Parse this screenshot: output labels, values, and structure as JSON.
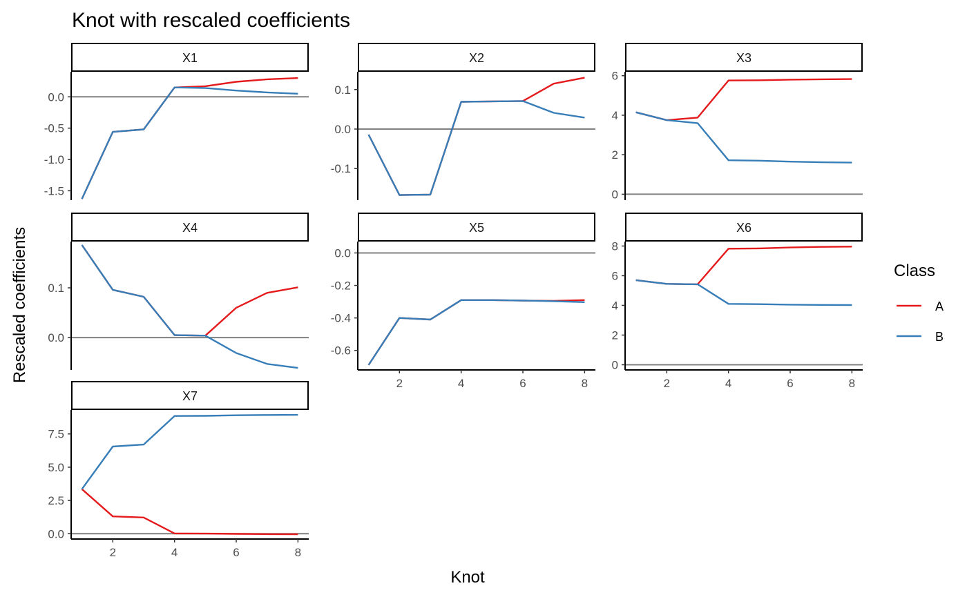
{
  "chart_data": {
    "type": "line",
    "title": "Knot with rescaled coefficients",
    "xlabel": "Knot",
    "ylabel": "Rescaled coefficients",
    "legend": {
      "title": "Class",
      "position": "right",
      "entries": [
        {
          "name": "A",
          "color": "#e41a1c"
        },
        {
          "name": "B",
          "color": "#377eb8"
        }
      ]
    },
    "x": [
      1,
      2,
      3,
      4,
      5,
      6,
      7,
      8
    ],
    "xticks": [
      2,
      4,
      6,
      8
    ],
    "reference_line_y": 0,
    "reference_line_color": "#808080",
    "grid": false,
    "facets": [
      {
        "label": "X1",
        "ylim": [
          -1.65,
          0.4
        ],
        "yticks": [
          0.0,
          -0.5,
          -1.0,
          -1.5
        ],
        "ytick_labels": [
          "0.0",
          "-0.5",
          "-1.0",
          "-1.5"
        ],
        "series": [
          {
            "name": "A",
            "values": [
              -1.63,
              -0.56,
              -0.52,
              0.15,
              0.17,
              0.24,
              0.28,
              0.3
            ]
          },
          {
            "name": "B",
            "values": [
              -1.63,
              -0.56,
              -0.52,
              0.15,
              0.14,
              0.1,
              0.07,
              0.05
            ]
          }
        ]
      },
      {
        "label": "X2",
        "ylim": [
          -0.18,
          0.145
        ],
        "yticks": [
          0.1,
          0.0,
          -0.1
        ],
        "ytick_labels": [
          "0.1",
          "0.0",
          "-0.1"
        ],
        "series": [
          {
            "name": "A",
            "values": [
              -0.014,
              -0.167,
              -0.166,
              0.069,
              0.07,
              0.071,
              0.115,
              0.13
            ]
          },
          {
            "name": "B",
            "values": [
              -0.014,
              -0.167,
              -0.166,
              0.069,
              0.07,
              0.071,
              0.041,
              0.029
            ]
          }
        ]
      },
      {
        "label": "X3",
        "ylim": [
          -0.3,
          6.2
        ],
        "yticks": [
          6,
          4,
          2,
          0
        ],
        "ytick_labels": [
          "6",
          "4",
          "2",
          "0"
        ],
        "series": [
          {
            "name": "A",
            "values": [
              4.15,
              3.75,
              3.88,
              5.76,
              5.77,
              5.8,
              5.82,
              5.83
            ]
          },
          {
            "name": "B",
            "values": [
              4.15,
              3.75,
              3.6,
              1.72,
              1.7,
              1.65,
              1.62,
              1.6
            ]
          }
        ]
      },
      {
        "label": "X4",
        "ylim": [
          -0.065,
          0.193
        ],
        "yticks": [
          0.1,
          0.0
        ],
        "ytick_labels": [
          "0.1",
          "0.0"
        ],
        "series": [
          {
            "name": "A",
            "values": [
              0.186,
              0.096,
              0.082,
              0.005,
              0.004,
              0.06,
              0.09,
              0.101
            ]
          },
          {
            "name": "B",
            "values": [
              0.186,
              0.096,
              0.082,
              0.005,
              0.004,
              -0.031,
              -0.053,
              -0.061
            ]
          }
        ]
      },
      {
        "label": "X5",
        "ylim": [
          -0.72,
          0.07
        ],
        "yticks": [
          0.0,
          -0.2,
          -0.4,
          -0.6
        ],
        "ytick_labels": [
          "0.0",
          "-0.2",
          "-0.4",
          "-0.6"
        ],
        "series": [
          {
            "name": "A",
            "values": [
              -0.69,
              -0.4,
              -0.41,
              -0.29,
              -0.29,
              -0.293,
              -0.295,
              -0.29
            ]
          },
          {
            "name": "B",
            "values": [
              -0.69,
              -0.4,
              -0.41,
              -0.29,
              -0.29,
              -0.293,
              -0.297,
              -0.303
            ]
          }
        ]
      },
      {
        "label": "X6",
        "ylim": [
          -0.35,
          8.3
        ],
        "yticks": [
          8,
          6,
          4,
          2,
          0
        ],
        "ytick_labels": [
          "8",
          "6",
          "4",
          "2",
          "0"
        ],
        "series": [
          {
            "name": "A",
            "values": [
              5.7,
              5.45,
              5.42,
              7.82,
              7.84,
              7.9,
              7.94,
              7.96
            ]
          },
          {
            "name": "B",
            "values": [
              5.7,
              5.45,
              5.42,
              4.1,
              4.08,
              4.05,
              4.03,
              4.02
            ]
          }
        ]
      },
      {
        "label": "X7",
        "ylim": [
          -0.4,
          9.3
        ],
        "yticks": [
          7.5,
          5.0,
          2.5,
          0.0
        ],
        "ytick_labels": [
          "7.5",
          "5.0",
          "2.5",
          "0.0"
        ],
        "series": [
          {
            "name": "A",
            "values": [
              3.35,
              1.3,
              1.22,
              0.02,
              0.01,
              -0.01,
              -0.03,
              -0.04
            ]
          },
          {
            "name": "B",
            "values": [
              3.35,
              6.55,
              6.7,
              8.85,
              8.86,
              8.9,
              8.92,
              8.93
            ]
          }
        ]
      }
    ]
  }
}
